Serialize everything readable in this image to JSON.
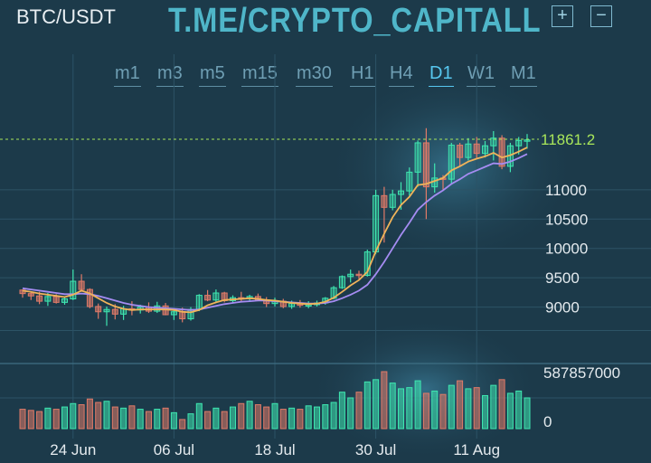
{
  "header": {
    "pair": "BTC/USDT",
    "watermark": "T.ME/CRYPTO_CAPITALL",
    "zoom_in_symbol": "+",
    "zoom_out_symbol": "−"
  },
  "timeframes": [
    "m1",
    "m3",
    "m5",
    "m15",
    "m30",
    "H1",
    "H4",
    "D1",
    "W1",
    "M1"
  ],
  "active_timeframe": "D1",
  "colors": {
    "background": "#1c3a4a",
    "up": "#3ee6b0",
    "down": "#e07a68",
    "ma_fast": "#f0b45a",
    "ma_slow": "#a58cf2",
    "last_price": "#a8e65a",
    "grid": "#2c5366"
  },
  "chart_data": {
    "type": "candlestick",
    "symbol": "BTC/USDT",
    "interval": "D1",
    "last_price": "11861.2",
    "price_axis": {
      "ylim": [
        8500,
        12200
      ],
      "ticks": [
        9000,
        9500,
        10000,
        10500,
        11000
      ]
    },
    "volume_axis": {
      "ylim": [
        0,
        587857000
      ],
      "ticks": [
        "587857000",
        "0"
      ]
    },
    "x_ticks": [
      {
        "label": "24 Jun",
        "index": 6
      },
      {
        "label": "06 Jul",
        "index": 18
      },
      {
        "label": "18 Jul",
        "index": 30
      },
      {
        "label": "30 Jul",
        "index": 42
      },
      {
        "label": "11 Aug",
        "index": 54
      }
    ],
    "candles": [
      [
        9290,
        9300,
        9160,
        9230
      ],
      [
        9230,
        9270,
        9120,
        9190
      ],
      [
        9190,
        9260,
        9050,
        9100
      ],
      [
        9100,
        9240,
        9020,
        9180
      ],
      [
        9180,
        9220,
        9060,
        9080
      ],
      [
        9080,
        9180,
        9040,
        9140
      ],
      [
        9140,
        9640,
        9120,
        9440
      ],
      [
        9440,
        9560,
        9260,
        9300
      ],
      [
        9300,
        9320,
        8980,
        9010
      ],
      [
        9010,
        9060,
        8800,
        8920
      ],
      [
        8920,
        9010,
        8680,
        8960
      ],
      [
        8960,
        9050,
        8790,
        8880
      ],
      [
        8880,
        9020,
        8780,
        8970
      ],
      [
        8970,
        9100,
        8860,
        8950
      ],
      [
        8950,
        9040,
        8890,
        9000
      ],
      [
        9000,
        9080,
        8900,
        8930
      ],
      [
        8930,
        9090,
        8900,
        9020
      ],
      [
        9020,
        9070,
        8860,
        8870
      ],
      [
        8870,
        8980,
        8780,
        8920
      ],
      [
        8920,
        8990,
        8740,
        8800
      ],
      [
        8800,
        9000,
        8770,
        8960
      ],
      [
        8960,
        9220,
        8930,
        9200
      ],
      [
        9200,
        9290,
        9100,
        9120
      ],
      [
        9120,
        9300,
        9080,
        9240
      ],
      [
        9240,
        9260,
        9080,
        9110
      ],
      [
        9110,
        9200,
        9070,
        9160
      ],
      [
        9160,
        9260,
        9100,
        9150
      ],
      [
        9150,
        9210,
        9090,
        9180
      ],
      [
        9180,
        9230,
        9100,
        9120
      ],
      [
        9120,
        9170,
        9000,
        9060
      ],
      [
        9060,
        9160,
        9010,
        9100
      ],
      [
        9100,
        9140,
        8980,
        9010
      ],
      [
        9010,
        9110,
        8970,
        9060
      ],
      [
        9060,
        9120,
        8990,
        9030
      ],
      [
        9030,
        9100,
        8980,
        9040
      ],
      [
        9040,
        9110,
        9010,
        9070
      ],
      [
        9070,
        9170,
        9040,
        9150
      ],
      [
        9150,
        9360,
        9130,
        9330
      ],
      [
        9330,
        9540,
        9310,
        9520
      ],
      [
        9520,
        9640,
        9420,
        9560
      ],
      [
        9560,
        9620,
        9480,
        9540
      ],
      [
        9540,
        9980,
        9520,
        9940
      ],
      [
        9940,
        11000,
        9900,
        10900
      ],
      [
        10900,
        11050,
        10100,
        10700
      ],
      [
        10700,
        11000,
        10650,
        10920
      ],
      [
        10920,
        11130,
        10660,
        10980
      ],
      [
        10980,
        11380,
        10900,
        11300
      ],
      [
        11300,
        11840,
        11050,
        11800
      ],
      [
        11800,
        12050,
        10500,
        11050
      ],
      [
        11050,
        11450,
        10950,
        11200
      ],
      [
        11200,
        11250,
        11000,
        11180
      ],
      [
        11180,
        11800,
        11100,
        11760
      ],
      [
        11760,
        11800,
        11400,
        11550
      ],
      [
        11550,
        11880,
        11500,
        11780
      ],
      [
        11780,
        11900,
        11540,
        11620
      ],
      [
        11620,
        11830,
        11550,
        11750
      ],
      [
        11750,
        12000,
        11500,
        11880
      ],
      [
        11880,
        11930,
        11350,
        11400
      ],
      [
        11400,
        11800,
        11300,
        11750
      ],
      [
        11750,
        11900,
        11600,
        11840
      ],
      [
        11840,
        11950,
        11700,
        11850
      ]
    ],
    "ma_fast": [
      9280,
      9260,
      9230,
      9210,
      9190,
      9170,
      9210,
      9280,
      9230,
      9150,
      9070,
      9010,
      8970,
      8950,
      8960,
      8960,
      8960,
      8960,
      8950,
      8920,
      8910,
      8950,
      9030,
      9080,
      9120,
      9130,
      9140,
      9150,
      9140,
      9120,
      9110,
      9090,
      9070,
      9060,
      9050,
      9060,
      9090,
      9160,
      9260,
      9370,
      9460,
      9600,
      9950,
      10250,
      10530,
      10740,
      10880,
      11080,
      11100,
      11150,
      11200,
      11330,
      11400,
      11480,
      11530,
      11570,
      11630,
      11550,
      11590,
      11650,
      11720
    ],
    "ma_slow": [
      9320,
      9300,
      9280,
      9260,
      9240,
      9220,
      9220,
      9230,
      9220,
      9190,
      9150,
      9110,
      9070,
      9040,
      9020,
      9000,
      8990,
      8980,
      8970,
      8960,
      8950,
      8960,
      8990,
      9020,
      9050,
      9070,
      9090,
      9100,
      9110,
      9110,
      9100,
      9090,
      9080,
      9070,
      9060,
      9060,
      9070,
      9100,
      9150,
      9210,
      9280,
      9380,
      9560,
      9770,
      10000,
      10230,
      10440,
      10660,
      10790,
      10900,
      10990,
      11100,
      11180,
      11270,
      11330,
      11390,
      11450,
      11440,
      11480,
      11540,
      11610
    ],
    "volume_ratio": [
      0.34,
      0.32,
      0.3,
      0.36,
      0.34,
      0.38,
      0.44,
      0.42,
      0.52,
      0.46,
      0.48,
      0.38,
      0.36,
      0.4,
      0.34,
      0.3,
      0.34,
      0.36,
      0.28,
      0.16,
      0.26,
      0.44,
      0.3,
      0.36,
      0.3,
      0.38,
      0.44,
      0.48,
      0.42,
      0.38,
      0.44,
      0.34,
      0.36,
      0.34,
      0.4,
      0.38,
      0.42,
      0.46,
      0.64,
      0.54,
      0.64,
      0.82,
      0.86,
      1.0,
      0.8,
      0.7,
      0.72,
      0.84,
      0.62,
      0.66,
      0.6,
      0.76,
      0.84,
      0.7,
      0.72,
      0.58,
      0.76,
      0.86,
      0.62,
      0.66,
      0.54
    ]
  }
}
